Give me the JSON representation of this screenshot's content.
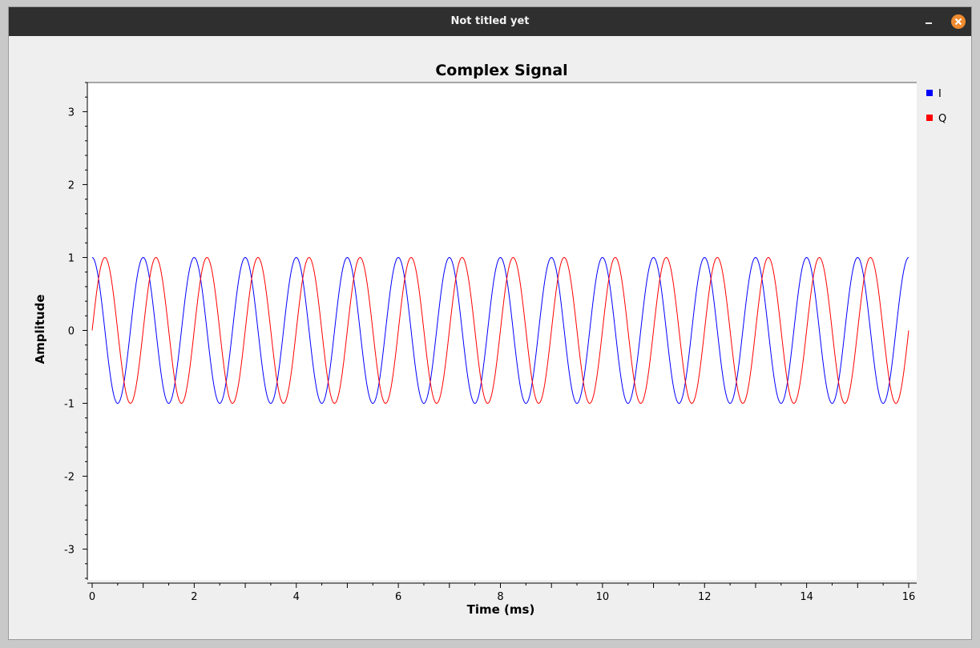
{
  "window": {
    "title": "Not titled yet",
    "minimize_icon": "minimize-icon",
    "close_icon": "close-icon",
    "close_color": "#ef8b2f"
  },
  "chart_data": {
    "type": "line",
    "title": "Complex Signal",
    "xlabel": "Time (ms)",
    "ylabel": "Amplitude",
    "xlim": [
      0,
      16
    ],
    "ylim": [
      -3.4,
      3.4
    ],
    "xticks": [
      0,
      2,
      4,
      6,
      8,
      10,
      12,
      14,
      16
    ],
    "yticks": [
      -3,
      -2,
      -1,
      0,
      1,
      2,
      3
    ],
    "grid": false,
    "legend_position": "right",
    "series": [
      {
        "name": "I",
        "color": "#0000ff",
        "function": "cos",
        "frequency_khz": 1,
        "amplitude": 1
      },
      {
        "name": "Q",
        "color": "#ff0000",
        "function": "sin",
        "frequency_khz": 1,
        "amplitude": 1
      }
    ]
  }
}
